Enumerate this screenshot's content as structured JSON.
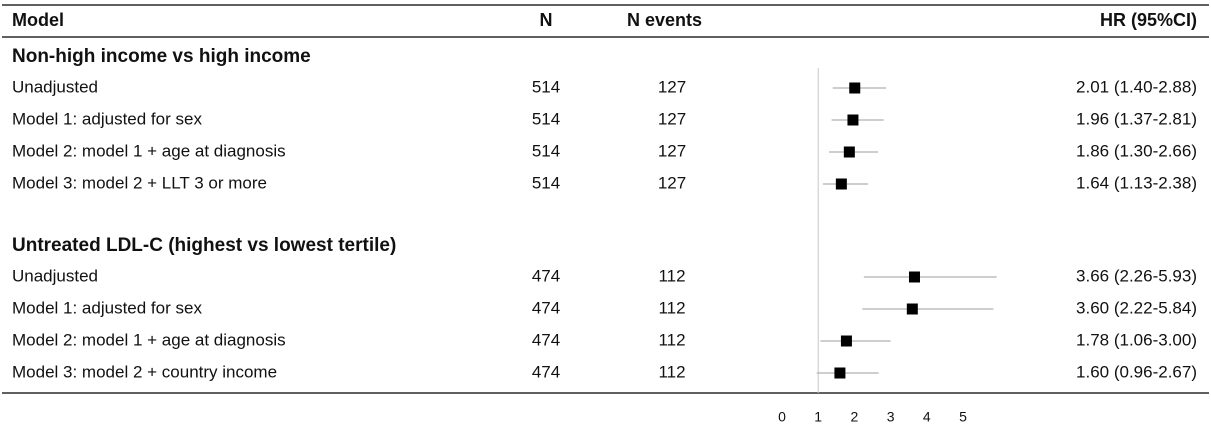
{
  "chart_data": {
    "type": "forest",
    "columns": [
      "Model",
      "N",
      "N events",
      "HR (95%CI)"
    ],
    "groups": [
      {
        "title": "Non-high income vs high income",
        "rows": [
          {
            "label": "Unadjusted",
            "n": 514,
            "events": 127,
            "hr": 2.01,
            "lower": 1.4,
            "upper": 2.88,
            "ci_label": "2.01 (1.40-2.88)"
          },
          {
            "label": "Model 1: adjusted for sex",
            "n": 514,
            "events": 127,
            "hr": 1.96,
            "lower": 1.37,
            "upper": 2.81,
            "ci_label": "1.96 (1.37-2.81)"
          },
          {
            "label": "Model 2: model 1 + age at diagnosis",
            "n": 514,
            "events": 127,
            "hr": 1.86,
            "lower": 1.3,
            "upper": 2.66,
            "ci_label": "1.86 (1.30-2.66)"
          },
          {
            "label": "Model 3: model 2 + LLT 3 or more",
            "n": 514,
            "events": 127,
            "hr": 1.64,
            "lower": 1.13,
            "upper": 2.38,
            "ci_label": "1.64 (1.13-2.38)"
          }
        ]
      },
      {
        "title": "Untreated LDL-C (highest vs lowest tertile)",
        "rows": [
          {
            "label": "Unadjusted",
            "n": 474,
            "events": 112,
            "hr": 3.66,
            "lower": 2.26,
            "upper": 5.93,
            "ci_label": "3.66 (2.26-5.93)"
          },
          {
            "label": "Model 1: adjusted for sex",
            "n": 474,
            "events": 112,
            "hr": 3.6,
            "lower": 2.22,
            "upper": 5.84,
            "ci_label": "3.60 (2.22-5.84)"
          },
          {
            "label": "Model 2: model 1 + age at diagnosis",
            "n": 474,
            "events": 112,
            "hr": 1.78,
            "lower": 1.06,
            "upper": 3.0,
            "ci_label": "1.78 (1.06-3.00)"
          },
          {
            "label": "Model 3: model 2 + country income",
            "n": 474,
            "events": 112,
            "hr": 1.6,
            "lower": 0.96,
            "upper": 2.67,
            "ci_label": "1.60 (0.96-2.67)"
          }
        ]
      }
    ],
    "xlim": [
      0,
      5
    ],
    "xticks": [
      0,
      1,
      2,
      3,
      4,
      5
    ],
    "ref_line": 1,
    "marker_color": "#000000",
    "ci_color": "#b0b0b0"
  }
}
